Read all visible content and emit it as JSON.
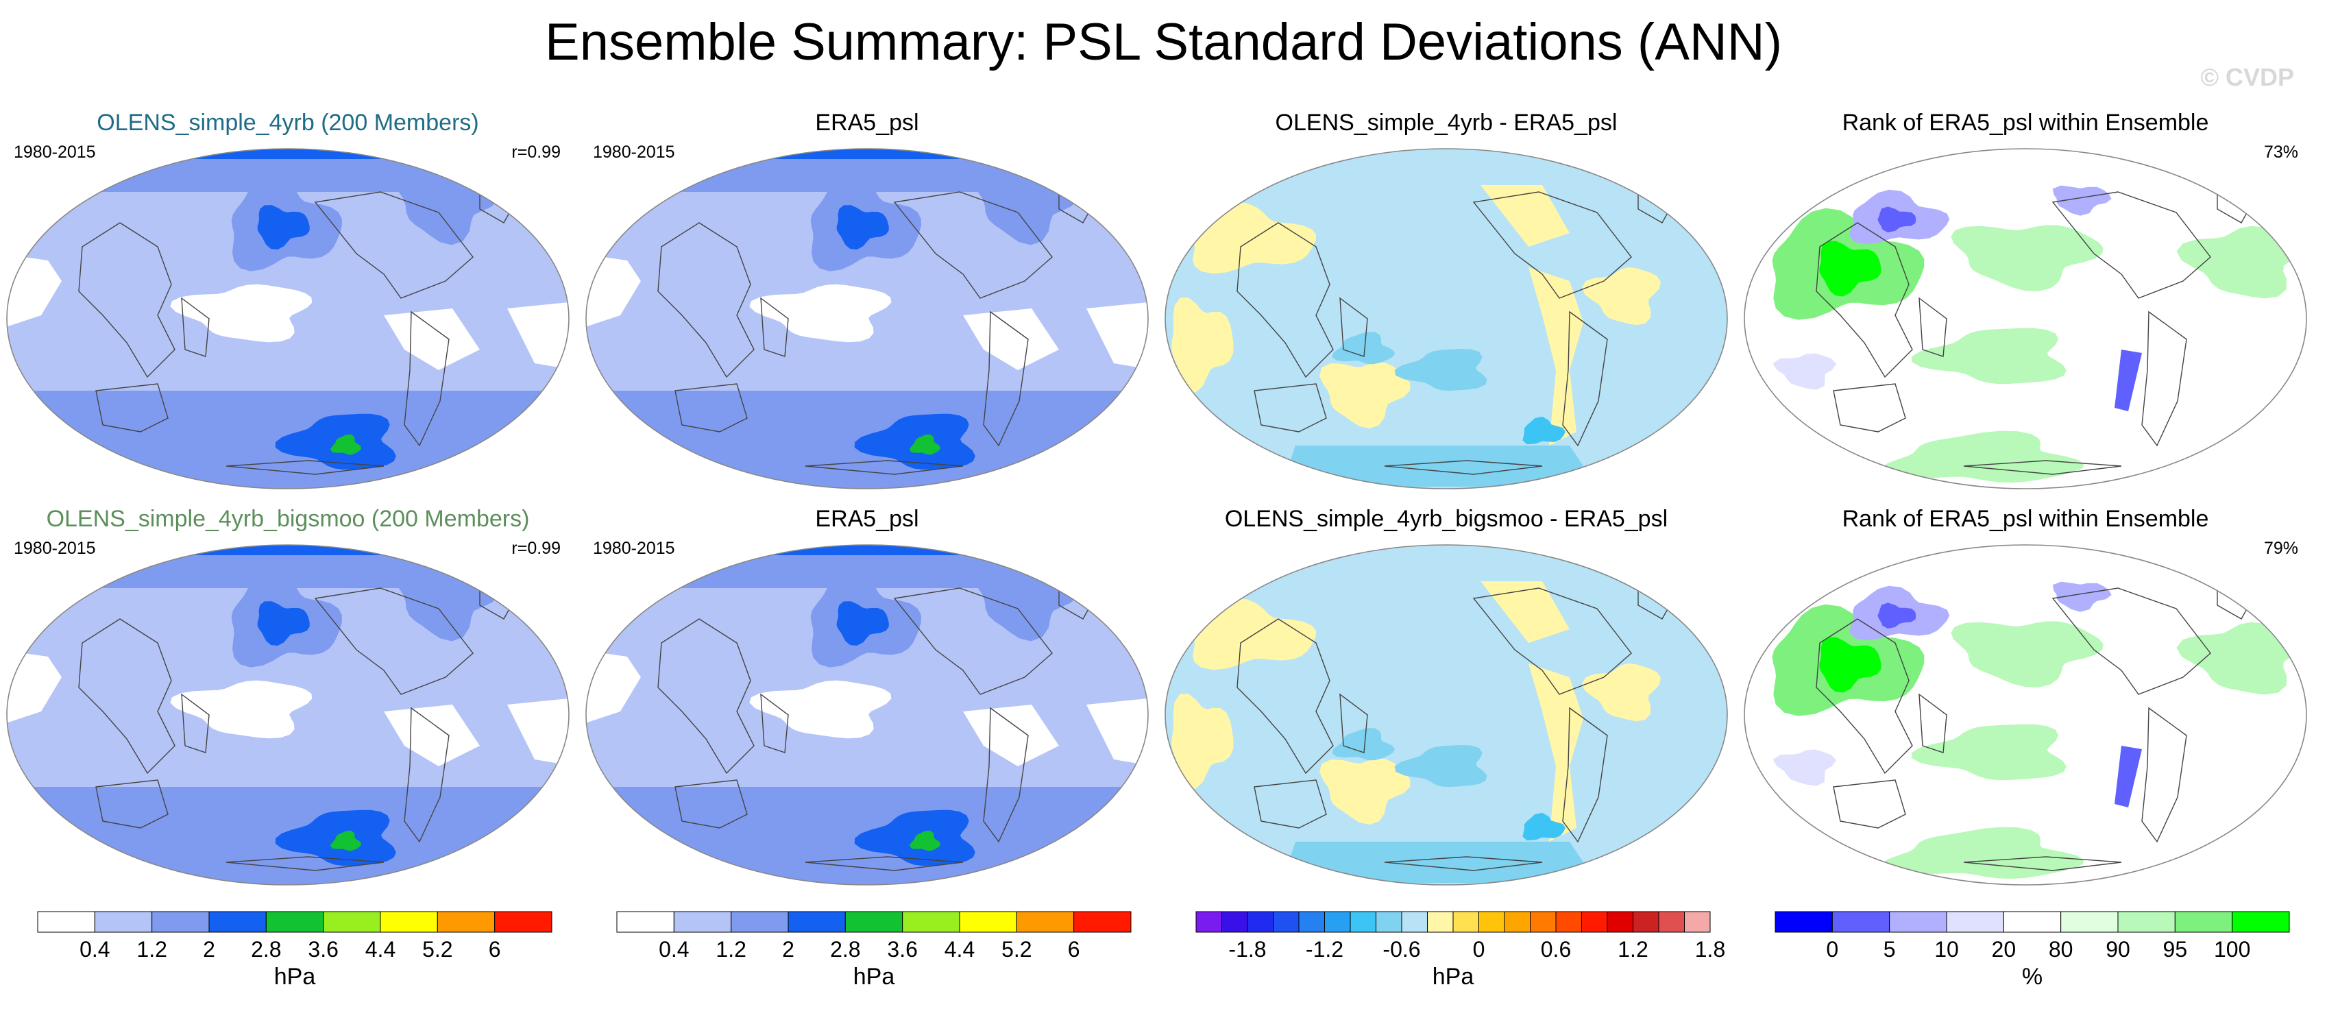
{
  "page": {
    "title": "Ensemble Summary: PSL Standard Deviations (ANN)",
    "watermark": "© CVDP"
  },
  "chart_data": [
    {
      "type": "map",
      "title": "OLENS_simple_4yrb (200 Members)",
      "title_color": "#1f6c86",
      "left_label": "1980-2015",
      "right_label": "r=0.99",
      "field": "std"
    },
    {
      "type": "map",
      "title": "ERA5_psl",
      "title_color": "#000000",
      "left_label": "1980-2015",
      "right_label": "",
      "field": "std"
    },
    {
      "type": "map",
      "title": "OLENS_simple_4yrb - ERA5_psl",
      "title_color": "#000000",
      "left_label": "",
      "right_label": "",
      "field": "diff"
    },
    {
      "type": "map",
      "title": "Rank of ERA5_psl within Ensemble",
      "title_color": "#000000",
      "left_label": "",
      "right_label": "73%",
      "field": "rank"
    },
    {
      "type": "map",
      "title": "OLENS_simple_4yrb_bigsmoo (200 Members)",
      "title_color": "#5c8f5c",
      "left_label": "1980-2015",
      "right_label": "r=0.99",
      "field": "std"
    },
    {
      "type": "map",
      "title": "ERA5_psl",
      "title_color": "#000000",
      "left_label": "1980-2015",
      "right_label": "",
      "field": "std"
    },
    {
      "type": "map",
      "title": "OLENS_simple_4yrb_bigsmoo - ERA5_psl",
      "title_color": "#000000",
      "left_label": "",
      "right_label": "",
      "field": "diff"
    },
    {
      "type": "map",
      "title": "Rank of ERA5_psl within Ensemble",
      "title_color": "#000000",
      "left_label": "",
      "right_label": "79%",
      "field": "rank"
    }
  ],
  "colorbars": [
    {
      "label": "hPa",
      "colors": [
        "#ffffff",
        "#b4c4f7",
        "#7f9bf0",
        "#1460f0",
        "#12c232",
        "#99ee20",
        "#ffff00",
        "#ff9900",
        "#ff1a00"
      ],
      "ticks": [
        "0.4",
        "1.2",
        "2",
        "2.8",
        "3.6",
        "4.4",
        "5.2",
        "6"
      ]
    },
    {
      "label": "hPa",
      "colors": [
        "#ffffff",
        "#b4c4f7",
        "#7f9bf0",
        "#1460f0",
        "#12c232",
        "#99ee20",
        "#ffff00",
        "#ff9900",
        "#ff1a00"
      ],
      "ticks": [
        "0.4",
        "1.2",
        "2",
        "2.8",
        "3.6",
        "4.4",
        "5.2",
        "6"
      ]
    },
    {
      "label": "hPa",
      "colors": [
        "#7a1cf0",
        "#3a10e8",
        "#1f2cf0",
        "#1e50f2",
        "#2580f0",
        "#27a0f4",
        "#3cc4f4",
        "#7fd2f0",
        "#b8e2f5",
        "#fff6a8",
        "#ffe050",
        "#ffc40a",
        "#ffa500",
        "#ff7a00",
        "#ff4a00",
        "#ff1a00",
        "#e00000",
        "#cc2222",
        "#e05050",
        "#f4a8a8"
      ],
      "ticks": [
        "-1.8",
        "-1.2",
        "-0.6",
        "0",
        "0.6",
        "1.2",
        "1.8"
      ],
      "tick_index": [
        2,
        5,
        8,
        11,
        14,
        17,
        20
      ]
    },
    {
      "label": "%",
      "colors": [
        "#0000ff",
        "#6060ff",
        "#b0b0ff",
        "#e0e0ff",
        "#ffffff",
        "#e0ffe0",
        "#b8f8b8",
        "#7ef07e",
        "#00ff00"
      ],
      "ticks": [
        "0",
        "5",
        "10",
        "20",
        "80",
        "90",
        "95",
        "100"
      ]
    }
  ]
}
